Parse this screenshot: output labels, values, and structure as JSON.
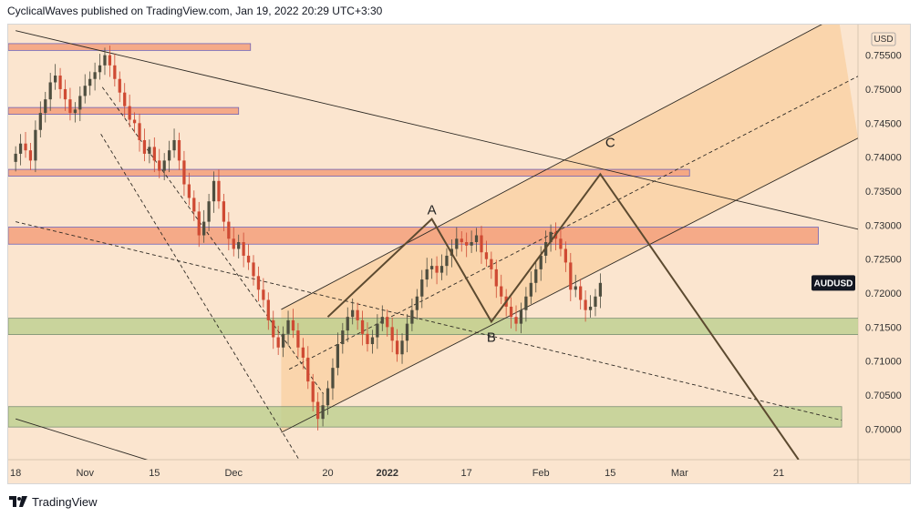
{
  "header": {
    "author": "CyclicalWaves",
    "published_text": "published on",
    "platform": "TradingView.com",
    "timestamp": "Jan 19, 2022 20:29 UTC+3:30"
  },
  "footer": {
    "logo_icon": "tradingview-logo-icon",
    "brand": "TradingView"
  },
  "colors": {
    "background": "#fbe5cf",
    "channel_fill": "#f9d2a6",
    "red_zone": "#f4a37f",
    "red_zone_border": "#6f63b8",
    "green_zone": "#bdd08e",
    "candle_up": "#4e4e3f",
    "candle_down": "#cf4a33",
    "path_line": "#5c4a30",
    "symbol_tag_bg": "#131722"
  },
  "chart_data": {
    "type": "candlestick",
    "symbol": "AUDUSD",
    "currency_label": "USD",
    "price_axis_ticks": [
      0.755,
      0.75,
      0.745,
      0.74,
      0.735,
      0.73,
      0.725,
      0.72,
      0.715,
      0.71,
      0.705,
      0.7
    ],
    "price_axis_labels": [
      "0.75500",
      "0.75000",
      "0.74500",
      "0.74000",
      "0.73500",
      "0.73000",
      "0.72500",
      "0.72000",
      "0.71500",
      "0.71000",
      "0.70500",
      "0.70000"
    ],
    "time_axis_labels": [
      "18",
      "Nov",
      "15",
      "Dec",
      "20",
      "2022",
      "17",
      "Feb",
      "15",
      "Mar",
      "21"
    ],
    "time_axis_label_days": [
      0,
      14,
      28,
      44,
      63,
      75,
      91,
      106,
      120,
      134,
      154
    ],
    "ylim": [
      0.6955,
      0.7595
    ],
    "xlim": [
      -1.5,
      170
    ],
    "candle_start_day": 0,
    "candle_closes": [
      0.7405,
      0.742,
      0.741,
      0.7395,
      0.744,
      0.7465,
      0.7485,
      0.751,
      0.752,
      0.75,
      0.7485,
      0.7465,
      0.747,
      0.749,
      0.7505,
      0.7515,
      0.7525,
      0.7535,
      0.755,
      0.7535,
      0.7515,
      0.7495,
      0.7475,
      0.7455,
      0.745,
      0.7425,
      0.7405,
      0.7415,
      0.7395,
      0.738,
      0.7395,
      0.741,
      0.7425,
      0.7395,
      0.736,
      0.734,
      0.732,
      0.7285,
      0.7305,
      0.7335,
      0.7365,
      0.7335,
      0.7305,
      0.728,
      0.7265,
      0.7275,
      0.7255,
      0.7245,
      0.7225,
      0.7205,
      0.719,
      0.716,
      0.7135,
      0.712,
      0.714,
      0.716,
      0.7145,
      0.712,
      0.7105,
      0.707,
      0.704,
      0.7015,
      0.7035,
      0.706,
      0.709,
      0.7125,
      0.7145,
      0.7165,
      0.7175,
      0.716,
      0.714,
      0.7125,
      0.7135,
      0.7155,
      0.7165,
      0.715,
      0.713,
      0.711,
      0.713,
      0.7155,
      0.7175,
      0.7195,
      0.722,
      0.7235,
      0.724,
      0.723,
      0.724,
      0.7255,
      0.7265,
      0.728,
      0.7275,
      0.727,
      0.7275,
      0.7285,
      0.726,
      0.725,
      0.7235,
      0.721,
      0.7195,
      0.718,
      0.7165,
      0.7155,
      0.7175,
      0.7195,
      0.7215,
      0.7235,
      0.7255,
      0.7275,
      0.729,
      0.728,
      0.7265,
      0.7245,
      0.7205,
      0.721,
      0.719,
      0.7175,
      0.718,
      0.7195,
      0.7215
    ],
    "annotations": [
      {
        "label": "A",
        "day": 84,
        "price": 0.7309
      },
      {
        "label": "B",
        "day": 96,
        "price": 0.7147
      },
      {
        "label": "C",
        "day": 120,
        "price": 0.7408
      }
    ],
    "projected_path": [
      {
        "day": 63,
        "price": 0.7165
      },
      {
        "day": 84,
        "price": 0.7309
      },
      {
        "day": 96,
        "price": 0.7158
      },
      {
        "day": 118,
        "price": 0.7375
      },
      {
        "day": 158,
        "price": 0.6955
      }
    ],
    "zones": [
      {
        "kind": "resistance",
        "price_top": 0.7567,
        "price_bottom": 0.7557,
        "day_end": 47.4
      },
      {
        "kind": "resistance",
        "price_top": 0.7473,
        "price_bottom": 0.7463,
        "day_end": 45
      },
      {
        "kind": "resistance",
        "price_top": 0.7382,
        "price_bottom": 0.7372,
        "day_end": 136
      },
      {
        "kind": "resistance",
        "price_top": 0.7297,
        "price_bottom": 0.7272,
        "day_end": 162
      },
      {
        "kind": "support",
        "price_top": 0.7163,
        "price_bottom": 0.7139,
        "day_end": 171
      },
      {
        "kind": "support",
        "price_top": 0.7033,
        "price_bottom": 0.7003,
        "day_end": 166.7
      }
    ],
    "trendlines": [
      {
        "style": "solid",
        "from": {
          "day": 0,
          "price": 0.7586
        },
        "to": {
          "day": 170,
          "price": 0.7294
        }
      },
      {
        "style": "solid",
        "from": {
          "day": 0,
          "price": 0.7015
        },
        "to": {
          "day": 44,
          "price": 0.6915
        }
      },
      {
        "style": "solid",
        "from": {
          "day": 53.6,
          "price": 0.6995
        },
        "to": {
          "day": 170,
          "price": 0.7428
        }
      },
      {
        "style": "solid",
        "from": {
          "day": 53.6,
          "price": 0.7176
        },
        "to": {
          "day": 166,
          "price": 0.7608
        }
      },
      {
        "style": "dashed",
        "from": {
          "day": 55.2,
          "price": 0.7088
        },
        "to": {
          "day": 170,
          "price": 0.7519
        }
      },
      {
        "style": "dashed",
        "from": {
          "day": 0,
          "price": 0.7305
        },
        "to": {
          "day": 166.7,
          "price": 0.7013
        }
      },
      {
        "style": "dashed",
        "from": {
          "day": 17.5,
          "price": 0.7503
        },
        "to": {
          "day": 62.1,
          "price": 0.7052
        }
      },
      {
        "style": "dashed",
        "from": {
          "day": 17.2,
          "price": 0.7434
        },
        "to": {
          "day": 57.2,
          "price": 0.6955
        }
      }
    ],
    "channel_band": {
      "lower": {
        "from": {
          "day": 53.6,
          "price": 0.6995
        },
        "to": {
          "day": 170,
          "price": 0.7428
        }
      },
      "upper": {
        "from": {
          "day": 53.6,
          "price": 0.7176
        },
        "to": {
          "day": 166,
          "price": 0.7608
        }
      }
    }
  }
}
